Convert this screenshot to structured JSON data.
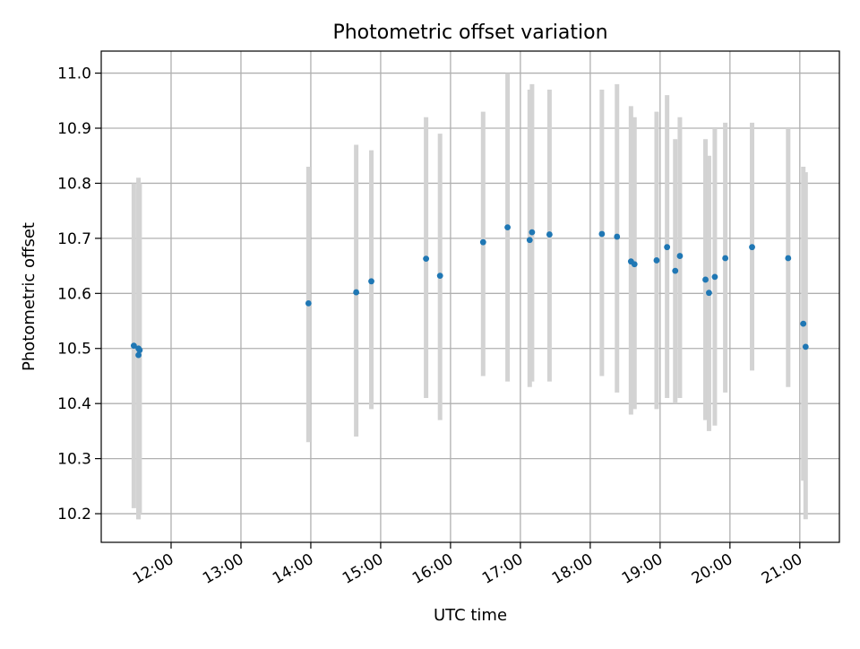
{
  "chart_data": {
    "type": "scatter",
    "title": "Photometric offset variation",
    "xlabel": "UTC time",
    "ylabel": "Photometric offset",
    "x_tick_labels": [
      "12:00",
      "13:00",
      "14:00",
      "15:00",
      "16:00",
      "17:00",
      "18:00",
      "19:00",
      "20:00",
      "21:00"
    ],
    "x_ticks_hours": [
      12,
      13,
      14,
      15,
      16,
      17,
      18,
      19,
      20,
      21
    ],
    "y_ticks": [
      10.2,
      10.3,
      10.4,
      10.5,
      10.6,
      10.7,
      10.8,
      10.9,
      11.0
    ],
    "y_tick_labels": [
      "10.2",
      "10.3",
      "10.4",
      "10.5",
      "10.6",
      "10.7",
      "10.8",
      "10.9",
      "11.0"
    ],
    "xlim": [
      "11:00",
      "21:34"
    ],
    "ylim": [
      10.148,
      11.04
    ],
    "grid": true,
    "colors": {
      "point": "#1f77b4",
      "errorbar": "#d3d3d3",
      "grid": "#b0b0b0"
    },
    "points": [
      {
        "time": "11:28",
        "y": 10.505,
        "low": 10.21,
        "high": 10.8
      },
      {
        "time": "11:32",
        "y": 10.5,
        "low": 10.19,
        "high": 10.81
      },
      {
        "time": "11:32",
        "y": 10.488,
        "low": 10.19,
        "high": 10.79
      },
      {
        "time": "11:33",
        "y": 10.497,
        "low": 10.2,
        "high": 10.8
      },
      {
        "time": "13:58",
        "y": 10.582,
        "low": 10.33,
        "high": 10.83
      },
      {
        "time": "14:39",
        "y": 10.602,
        "low": 10.34,
        "high": 10.87
      },
      {
        "time": "14:52",
        "y": 10.622,
        "low": 10.39,
        "high": 10.86
      },
      {
        "time": "15:39",
        "y": 10.663,
        "low": 10.41,
        "high": 10.92
      },
      {
        "time": "15:51",
        "y": 10.632,
        "low": 10.37,
        "high": 10.89
      },
      {
        "time": "16:28",
        "y": 10.693,
        "low": 10.45,
        "high": 10.93
      },
      {
        "time": "16:49",
        "y": 10.72,
        "low": 10.44,
        "high": 11.0
      },
      {
        "time": "17:08",
        "y": 10.697,
        "low": 10.43,
        "high": 10.97
      },
      {
        "time": "17:10",
        "y": 10.711,
        "low": 10.44,
        "high": 10.98
      },
      {
        "time": "17:25",
        "y": 10.707,
        "low": 10.44,
        "high": 10.97
      },
      {
        "time": "18:10",
        "y": 10.708,
        "low": 10.45,
        "high": 10.97
      },
      {
        "time": "18:23",
        "y": 10.703,
        "low": 10.42,
        "high": 10.98
      },
      {
        "time": "18:35",
        "y": 10.658,
        "low": 10.38,
        "high": 10.94
      },
      {
        "time": "18:38",
        "y": 10.653,
        "low": 10.39,
        "high": 10.92
      },
      {
        "time": "18:57",
        "y": 10.66,
        "low": 10.39,
        "high": 10.93
      },
      {
        "time": "19:06",
        "y": 10.684,
        "low": 10.41,
        "high": 10.96
      },
      {
        "time": "19:13",
        "y": 10.641,
        "low": 10.4,
        "high": 10.88
      },
      {
        "time": "19:17",
        "y": 10.668,
        "low": 10.41,
        "high": 10.92
      },
      {
        "time": "19:39",
        "y": 10.625,
        "low": 10.37,
        "high": 10.88
      },
      {
        "time": "19:42",
        "y": 10.601,
        "low": 10.35,
        "high": 10.85
      },
      {
        "time": "19:47",
        "y": 10.63,
        "low": 10.36,
        "high": 10.9
      },
      {
        "time": "19:56",
        "y": 10.664,
        "low": 10.42,
        "high": 10.91
      },
      {
        "time": "20:19",
        "y": 10.684,
        "low": 10.46,
        "high": 10.91
      },
      {
        "time": "20:50",
        "y": 10.664,
        "low": 10.43,
        "high": 10.9
      },
      {
        "time": "21:03",
        "y": 10.545,
        "low": 10.26,
        "high": 10.83
      },
      {
        "time": "21:05",
        "y": 10.503,
        "low": 10.19,
        "high": 10.82
      }
    ]
  }
}
